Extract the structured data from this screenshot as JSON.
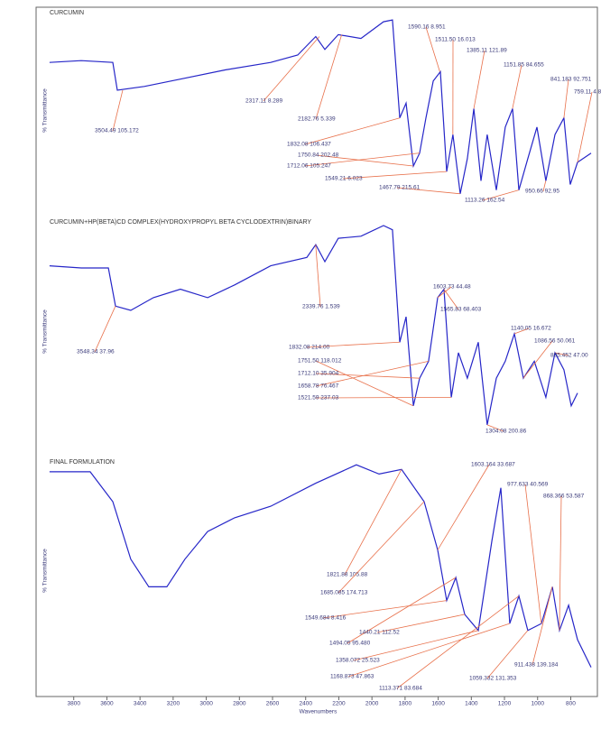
{
  "chart_data": [
    {
      "type": "line",
      "title": "CURCUMIN",
      "ylabel": "% Transmittance",
      "color": "#2626c8",
      "xlim": [
        4000,
        650
      ],
      "ylim": [
        0,
        100
      ],
      "x": [
        3946,
        3755,
        3564,
        3537,
        3374,
        3156,
        2883,
        2611,
        2448,
        2339,
        2284,
        2203,
        2066,
        1930,
        1876,
        1832,
        1794,
        1750,
        1712,
        1674,
        1630,
        1587,
        1549,
        1511,
        1467,
        1424,
        1385,
        1342,
        1304,
        1249,
        1195,
        1151,
        1113,
        1059,
        1004,
        950,
        895,
        841,
        803,
        759,
        677
      ],
      "values": [
        76,
        77,
        76,
        61,
        63,
        67,
        72,
        76,
        80,
        90,
        83,
        91,
        89,
        98,
        99,
        46,
        54,
        20,
        27,
        46,
        66,
        71,
        17,
        37,
        5,
        24,
        51,
        12,
        37,
        7,
        41,
        51,
        7,
        24,
        41,
        12,
        37,
        46,
        10,
        22,
        27
      ],
      "annotations": [
        {
          "text": "3504.49 105.172",
          "x": 3504.49,
          "y": 61
        },
        {
          "text": "2317.11 8.289",
          "x": 2317.11,
          "y": 90
        },
        {
          "text": "2182.76 5.339",
          "x": 2182.76,
          "y": 91
        },
        {
          "text": "1590.16 8.951",
          "x": 1590.16,
          "y": 71
        },
        {
          "text": "1511.50 16.013",
          "x": 1511.5,
          "y": 37
        },
        {
          "text": "1385.11 121.89",
          "x": 1385.11,
          "y": 51
        },
        {
          "text": "1151.85 84.655",
          "x": 1151.85,
          "y": 51
        },
        {
          "text": "841.183 92.751",
          "x": 841.183,
          "y": 46
        },
        {
          "text": "759.11 4.8",
          "x": 759.11,
          "y": 22
        },
        {
          "text": "1832.08 106.437",
          "x": 1832.08,
          "y": 46
        },
        {
          "text": "1750.84 202.48",
          "x": 1750.84,
          "y": 20
        },
        {
          "text": "1712.06 105.247",
          "x": 1712.06,
          "y": 27
        },
        {
          "text": "1549.21 6.023",
          "x": 1549.21,
          "y": 17
        },
        {
          "text": "1467.79 215.61",
          "x": 1467.79,
          "y": 5
        },
        {
          "text": "1113.26 162.54",
          "x": 1113.26,
          "y": 7
        },
        {
          "text": "950.66 92.95",
          "x": 950.66,
          "y": 12
        }
      ]
    },
    {
      "type": "line",
      "title": "CURCUMIN+HP(BETA)CD COMPLEX(HYDROXYPROPYL BETA CYCLODEXTRIN)BINARY",
      "ylabel": "% Transmittance",
      "color": "#2626c8",
      "xlim": [
        4000,
        650
      ],
      "ylim": [
        0,
        100
      ],
      "x": [
        3946,
        3755,
        3591,
        3548,
        3456,
        3319,
        3156,
        2992,
        2829,
        2611,
        2393,
        2339,
        2284,
        2203,
        2066,
        1930,
        1876,
        1832,
        1794,
        1750,
        1712,
        1658,
        1603,
        1565,
        1521,
        1478,
        1424,
        1358,
        1304,
        1249,
        1195,
        1140,
        1086,
        1020,
        950,
        895,
        841,
        797,
        759
      ],
      "values": [
        81,
        80,
        80,
        62,
        60,
        66,
        70,
        66,
        72,
        81,
        85,
        91,
        83,
        94,
        95,
        100,
        98,
        45,
        57,
        15,
        28,
        36,
        66,
        70,
        19,
        40,
        28,
        45,
        6,
        28,
        36,
        49,
        28,
        36,
        19,
        40,
        32,
        15,
        21
      ],
      "annotations": [
        {
          "text": "3548.34 37.96",
          "x": 3548.34,
          "y": 62
        },
        {
          "text": "2339.76 1.539",
          "x": 2339.76,
          "y": 91
        },
        {
          "text": "1832.08 214.00",
          "x": 1832.08,
          "y": 45
        },
        {
          "text": "1751.50 118.012",
          "x": 1751.5,
          "y": 15
        },
        {
          "text": "1712.10 35.904",
          "x": 1712.1,
          "y": 28
        },
        {
          "text": "1658.78 76.467",
          "x": 1658.78,
          "y": 36
        },
        {
          "text": "1521.59 237.03",
          "x": 1521.59,
          "y": 19
        },
        {
          "text": "1603.73 44.48",
          "x": 1603.73,
          "y": 66
        },
        {
          "text": "1565.83 68.403",
          "x": 1565.83,
          "y": 70
        },
        {
          "text": "1140.05 16.672",
          "x": 1140.05,
          "y": 49
        },
        {
          "text": "1086.56 50.061",
          "x": 1086.56,
          "y": 28
        },
        {
          "text": "895.452 47.00",
          "x": 895.452,
          "y": 40
        },
        {
          "text": "1304.08 200.86",
          "x": 1304.08,
          "y": 6
        }
      ]
    },
    {
      "type": "line",
      "title": "FINAL FORMULATION",
      "ylabel": "% Transmittance",
      "xlabel": "Wavenumbers",
      "color": "#2626c8",
      "xlim": [
        4000,
        650
      ],
      "ylim": [
        0,
        100
      ],
      "xticks": [
        3800,
        3600,
        3400,
        3200,
        3000,
        2800,
        2600,
        2400,
        2200,
        2000,
        1800,
        1600,
        1400,
        1200,
        1000,
        800
      ],
      "x": [
        3946,
        3701,
        3564,
        3456,
        3347,
        3238,
        3129,
        2992,
        2829,
        2611,
        2339,
        2094,
        1957,
        1821,
        1685,
        1603,
        1549,
        1494,
        1440,
        1358,
        1276,
        1222,
        1168,
        1113,
        1059,
        977,
        911,
        868,
        813,
        759,
        677
      ],
      "values": [
        93,
        93,
        80,
        55,
        43,
        43,
        55,
        67,
        73,
        78,
        88,
        96,
        92,
        94,
        80,
        59,
        37,
        47,
        31,
        24,
        63,
        86,
        27,
        39,
        24,
        27,
        43,
        24,
        35,
        20,
        8
      ],
      "annotations": [
        {
          "text": "1603.164 33.687",
          "x": 1603.164,
          "y": 59
        },
        {
          "text": "977.633 40.569",
          "x": 977.633,
          "y": 27
        },
        {
          "text": "868.366 53.587",
          "x": 868.366,
          "y": 24
        },
        {
          "text": "1821.88 105.88",
          "x": 1821.88,
          "y": 94
        },
        {
          "text": "1685.085 174.713",
          "x": 1685.085,
          "y": 80
        },
        {
          "text": "1549.684 8.416",
          "x": 1549.684,
          "y": 37
        },
        {
          "text": "1494.05 95.480",
          "x": 1494.05,
          "y": 47
        },
        {
          "text": "1440.21 112.52",
          "x": 1440.21,
          "y": 31
        },
        {
          "text": "1358.072 25.523",
          "x": 1358.072,
          "y": 24
        },
        {
          "text": "1168.873 47.863",
          "x": 1168.873,
          "y": 27
        },
        {
          "text": "1113.371 83.684",
          "x": 1113.371,
          "y": 39
        },
        {
          "text": "1059.332 131.353",
          "x": 1059.332,
          "y": 24
        },
        {
          "text": "911.438 139.184",
          "x": 911.438,
          "y": 43
        }
      ]
    }
  ]
}
